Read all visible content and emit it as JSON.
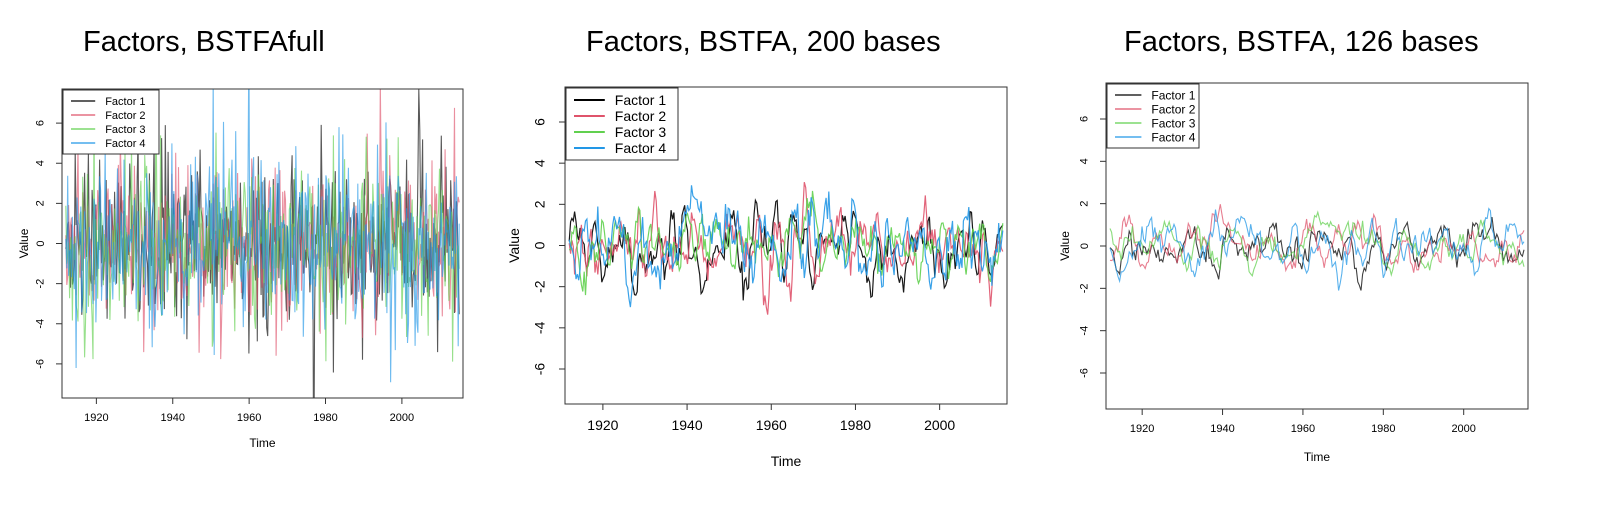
{
  "series_colors": [
    "#000000",
    "#DF536B",
    "#61D04F",
    "#2297E6"
  ],
  "chart_data": [
    {
      "type": "line",
      "title": "Factors, BSTFAfull",
      "xlabel": "Time",
      "ylabel": "Value",
      "xlim": [
        1911,
        2016
      ],
      "ylim": [
        -7.7,
        7.7
      ],
      "xticks": [
        1920,
        1940,
        1960,
        1980,
        2000
      ],
      "yticks": [
        -6,
        -4,
        -2,
        0,
        2,
        4,
        6
      ],
      "legend_position": "top-left",
      "line_opacity": 0.65,
      "style": "noisy-monthly",
      "series": [
        {
          "name": "Factor 1",
          "color": "#000000",
          "amplitude": 2.0,
          "seed": 11,
          "x_start": 1912,
          "x_end": 2015
        },
        {
          "name": "Factor 2",
          "color": "#DF536B",
          "amplitude": 2.0,
          "seed": 23,
          "x_start": 1912,
          "x_end": 2015
        },
        {
          "name": "Factor 3",
          "color": "#61D04F",
          "amplitude": 2.0,
          "seed": 37,
          "x_start": 1912,
          "x_end": 2015
        },
        {
          "name": "Factor 4",
          "color": "#2297E6",
          "amplitude": 2.3,
          "seed": 41,
          "x_start": 1912,
          "x_end": 2015
        }
      ]
    },
    {
      "type": "line",
      "title": "Factors, BSTFA, 200 bases",
      "xlabel": "Time",
      "ylabel": "Value",
      "xlim": [
        1911,
        2016
      ],
      "ylim": [
        -7.7,
        7.7
      ],
      "xticks": [
        1920,
        1940,
        1960,
        1980,
        2000
      ],
      "yticks": [
        -6,
        -4,
        -2,
        0,
        2,
        4,
        6
      ],
      "legend_position": "top-left",
      "line_opacity": 0.9,
      "style": "smooth-200",
      "series": [
        {
          "name": "Factor 1",
          "color": "#000000",
          "amplitude": 1.1,
          "seed": 5,
          "x_start": 1912,
          "x_end": 2015
        },
        {
          "name": "Factor 2",
          "color": "#DF536B",
          "amplitude": 1.2,
          "seed": 17,
          "x_start": 1912,
          "x_end": 2015
        },
        {
          "name": "Factor 3",
          "color": "#61D04F",
          "amplitude": 1.0,
          "seed": 29,
          "x_start": 1912,
          "x_end": 2015
        },
        {
          "name": "Factor 4",
          "color": "#2297E6",
          "amplitude": 1.3,
          "seed": 43,
          "x_start": 1912,
          "x_end": 2015
        }
      ]
    },
    {
      "type": "line",
      "title": "Factors, BSTFA, 126 bases",
      "xlabel": "Time",
      "ylabel": "Value",
      "xlim": [
        1911,
        2016
      ],
      "ylim": [
        -7.7,
        7.7
      ],
      "xticks": [
        1920,
        1940,
        1960,
        1980,
        2000
      ],
      "yticks": [
        -6,
        -4,
        -2,
        0,
        2,
        4,
        6
      ],
      "legend_position": "top-left",
      "line_opacity": 0.75,
      "style": "smooth-126",
      "series": [
        {
          "name": "Factor 1",
          "color": "#000000",
          "amplitude": 0.9,
          "seed": 7,
          "x_start": 1912,
          "x_end": 2015
        },
        {
          "name": "Factor 2",
          "color": "#DF536B",
          "amplitude": 0.9,
          "seed": 19,
          "x_start": 1912,
          "x_end": 2015
        },
        {
          "name": "Factor 3",
          "color": "#61D04F",
          "amplitude": 0.8,
          "seed": 31,
          "x_start": 1912,
          "x_end": 2015
        },
        {
          "name": "Factor 4",
          "color": "#2297E6",
          "amplitude": 1.0,
          "seed": 47,
          "x_start": 1912,
          "x_end": 2015
        }
      ]
    }
  ]
}
